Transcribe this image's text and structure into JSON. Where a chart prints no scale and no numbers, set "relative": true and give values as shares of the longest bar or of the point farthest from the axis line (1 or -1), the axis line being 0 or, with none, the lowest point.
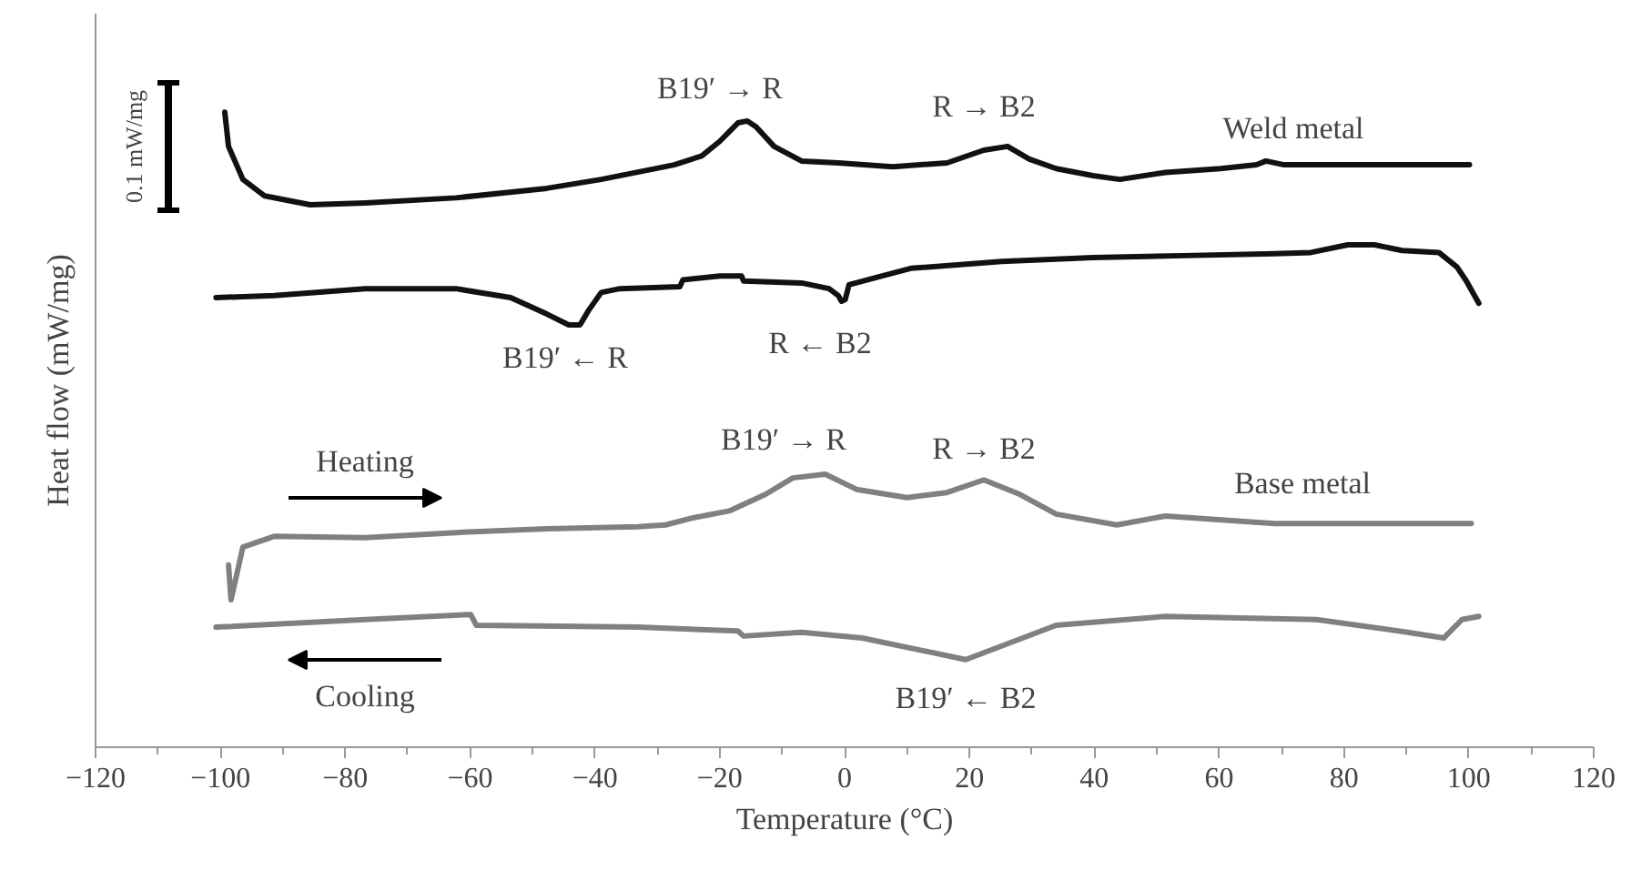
{
  "chart_data": {
    "type": "line",
    "relative": true,
    "xlabel": "Temperature (°C)",
    "ylabel": "Heat flow (mW/mg)",
    "xlim": [
      -120,
      120
    ],
    "xticks": [
      -120,
      -100,
      -80,
      -60,
      -40,
      -20,
      0,
      20,
      40,
      60,
      80,
      100,
      120
    ],
    "grid": false,
    "marker": "none",
    "line_style": "solid",
    "series": [
      {
        "color": "#111111",
        "x": [
          -99.3,
          -98.7,
          -96.4,
          -92.9,
          -85.6,
          -76.8,
          -62.3,
          -47.7,
          -39.0,
          -27.3,
          -22.9,
          -20.0,
          -17.1,
          -15.6,
          -14.2,
          -11.3,
          -6.9,
          -1.0,
          7.7,
          16.4,
          22.3,
          26.1,
          29.6,
          33.9,
          39.8,
          44.1,
          51.4,
          60.2,
          66.0,
          67.5,
          70.4,
          80.6,
          100.1
        ],
        "values": [
          1.0,
          0.946,
          0.894,
          0.868,
          0.854,
          0.857,
          0.865,
          0.88,
          0.894,
          0.917,
          0.931,
          0.954,
          0.983,
          0.986,
          0.977,
          0.946,
          0.923,
          0.92,
          0.914,
          0.92,
          0.94,
          0.946,
          0.926,
          0.911,
          0.9,
          0.894,
          0.905,
          0.911,
          0.917,
          0.923,
          0.917,
          0.917,
          0.917
        ]
      },
      {
        "color": "#111111",
        "x": [
          -100.7,
          -91.4,
          -76.8,
          -62.3,
          -53.5,
          -47.7,
          -44.2,
          -42.4,
          -41.0,
          -39.0,
          -36.0,
          -26.4,
          -25.9,
          -20.0,
          -16.5,
          -16.2,
          -6.9,
          -2.5,
          -1.0,
          -0.5,
          0.1,
          0.7,
          4.8,
          10.6,
          25.2,
          39.8,
          54.3,
          68.9,
          74.7,
          80.6,
          84.9,
          89.3,
          95.2,
          98.1,
          99.6,
          101.6
        ],
        "values": [
          0.708,
          0.711,
          0.722,
          0.722,
          0.708,
          0.682,
          0.665,
          0.665,
          0.688,
          0.716,
          0.722,
          0.725,
          0.736,
          0.742,
          0.742,
          0.734,
          0.731,
          0.722,
          0.711,
          0.702,
          0.705,
          0.728,
          0.739,
          0.754,
          0.765,
          0.771,
          0.774,
          0.777,
          0.779,
          0.791,
          0.791,
          0.782,
          0.779,
          0.756,
          0.734,
          0.699
        ]
      },
      {
        "color": "#808080",
        "x": [
          -98.7,
          -98.3,
          -96.4,
          -91.4,
          -76.8,
          -62.3,
          -47.7,
          -33.1,
          -28.7,
          -24.4,
          -18.5,
          -12.7,
          -8.3,
          -3.1,
          1.9,
          10.0,
          16.4,
          22.3,
          28.1,
          33.9,
          43.6,
          51.4,
          68.9,
          100.4
        ],
        "values": [
          0.287,
          0.232,
          0.315,
          0.332,
          0.33,
          0.338,
          0.344,
          0.347,
          0.35,
          0.361,
          0.372,
          0.398,
          0.424,
          0.43,
          0.406,
          0.393,
          0.401,
          0.421,
          0.398,
          0.367,
          0.35,
          0.364,
          0.352,
          0.352
        ]
      },
      {
        "color": "#808080",
        "x": [
          -100.7,
          -76.8,
          -59.9,
          -59.0,
          -33.1,
          -17.1,
          -16.2,
          -6.9,
          2.8,
          19.4,
          33.9,
          51.4,
          75.6,
          90.2,
          96.0,
          98.9,
          101.6
        ],
        "values": [
          0.189,
          0.201,
          0.209,
          0.192,
          0.189,
          0.183,
          0.175,
          0.181,
          0.172,
          0.138,
          0.192,
          0.206,
          0.201,
          0.181,
          0.172,
          0.201,
          0.206
        ]
      }
    ],
    "annotations": [
      "B19′ → R",
      "R → B2",
      "Weld metal",
      "B19′ ← R",
      "R ← B2",
      "Heating",
      "B19′ → R",
      "R → B2",
      "Base metal",
      "Cooling",
      "B19′ ← B2",
      "0.1 mW/mg"
    ]
  }
}
